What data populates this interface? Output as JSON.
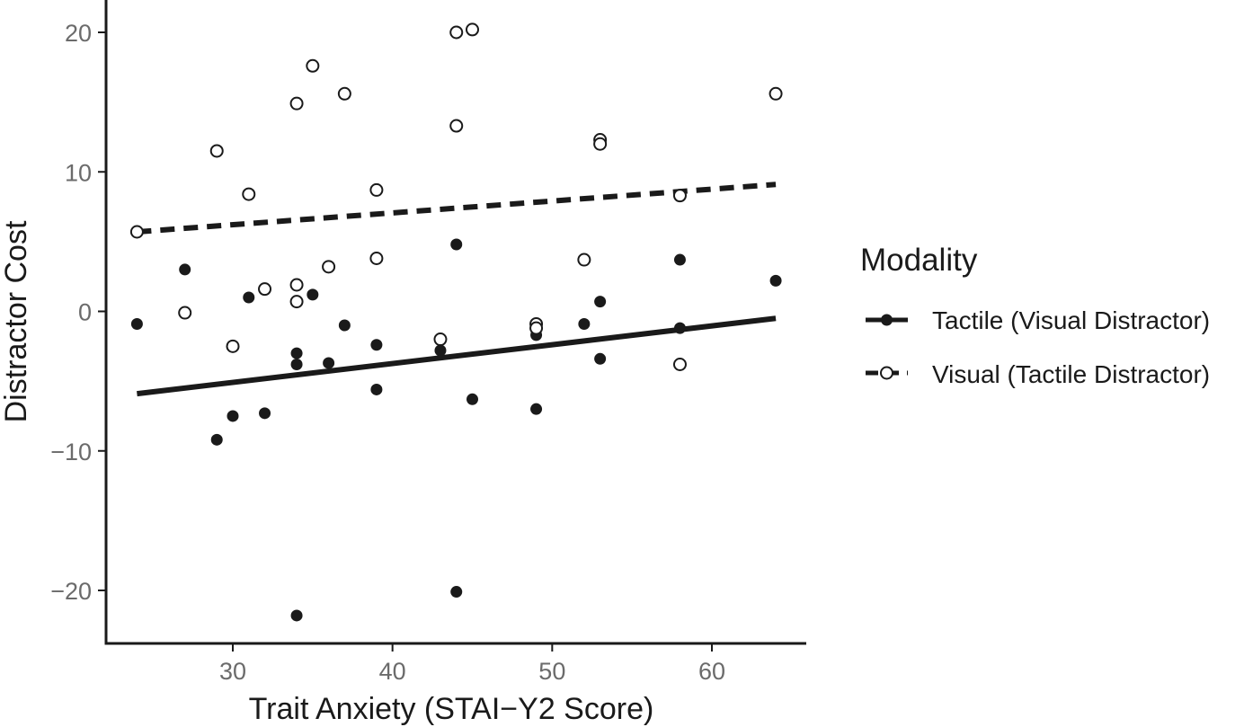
{
  "chart_data": {
    "type": "scatter",
    "xlabel": "Trait Anxiety (STAI−Y2 Score)",
    "ylabel": "Distractor Cost",
    "xlim": [
      22.5,
      66
    ],
    "ylim": [
      -23.5,
      22.3
    ],
    "x_ticks": [
      30,
      40,
      50,
      60
    ],
    "x_tick_labels": [
      "30",
      "40",
      "50",
      "60"
    ],
    "y_ticks": [
      20,
      10,
      0,
      -10,
      -20
    ],
    "y_tick_labels": [
      "20",
      "10",
      "0",
      "−10",
      "−20"
    ],
    "grid": false,
    "legend": {
      "title": "Modality",
      "placement": "right"
    },
    "series": [
      {
        "name": "Tactile (Visual Distractor)",
        "marker": "filled-circle",
        "line_style": "solid",
        "color": "#1a1a1a",
        "fit_line": {
          "x": [
            24,
            64
          ],
          "y": [
            -5.9,
            -0.5
          ]
        },
        "points": [
          {
            "x": 24,
            "y": -0.9
          },
          {
            "x": 27,
            "y": 3.0
          },
          {
            "x": 29,
            "y": -9.2
          },
          {
            "x": 30,
            "y": -7.5
          },
          {
            "x": 31,
            "y": 1.0
          },
          {
            "x": 32,
            "y": -7.3
          },
          {
            "x": 34,
            "y": -3.0
          },
          {
            "x": 34,
            "y": -3.8
          },
          {
            "x": 34,
            "y": -21.8
          },
          {
            "x": 35,
            "y": 1.2
          },
          {
            "x": 36,
            "y": -3.7
          },
          {
            "x": 37,
            "y": -1.0
          },
          {
            "x": 39,
            "y": -2.4
          },
          {
            "x": 39,
            "y": -5.6
          },
          {
            "x": 43,
            "y": -2.8
          },
          {
            "x": 44,
            "y": 4.8
          },
          {
            "x": 44,
            "y": -20.1
          },
          {
            "x": 45,
            "y": -6.3
          },
          {
            "x": 49,
            "y": -1.7
          },
          {
            "x": 49,
            "y": -7.0
          },
          {
            "x": 52,
            "y": -0.9
          },
          {
            "x": 53,
            "y": 0.7
          },
          {
            "x": 53,
            "y": -3.4
          },
          {
            "x": 58,
            "y": 3.7
          },
          {
            "x": 58,
            "y": -1.2
          },
          {
            "x": 64,
            "y": 2.2
          }
        ]
      },
      {
        "name": "Visual (Tactile Distractor)",
        "marker": "open-circle",
        "line_style": "dashed",
        "color": "#1a1a1a",
        "fit_line": {
          "x": [
            24,
            64
          ],
          "y": [
            5.7,
            9.1
          ]
        },
        "points": [
          {
            "x": 24,
            "y": 5.7
          },
          {
            "x": 27,
            "y": -0.1
          },
          {
            "x": 29,
            "y": 11.5
          },
          {
            "x": 30,
            "y": -2.5
          },
          {
            "x": 31,
            "y": 8.4
          },
          {
            "x": 32,
            "y": 1.6
          },
          {
            "x": 34,
            "y": 14.9
          },
          {
            "x": 34,
            "y": 1.9
          },
          {
            "x": 34,
            "y": 0.7
          },
          {
            "x": 35,
            "y": 17.6
          },
          {
            "x": 36,
            "y": 3.2
          },
          {
            "x": 37,
            "y": 15.6
          },
          {
            "x": 39,
            "y": 8.7
          },
          {
            "x": 39,
            "y": 3.8
          },
          {
            "x": 43,
            "y": -2.0
          },
          {
            "x": 44,
            "y": 20.0
          },
          {
            "x": 44,
            "y": 13.3
          },
          {
            "x": 45,
            "y": 20.2
          },
          {
            "x": 49,
            "y": -0.9
          },
          {
            "x": 49,
            "y": -1.2
          },
          {
            "x": 52,
            "y": 3.7
          },
          {
            "x": 53,
            "y": 12.3
          },
          {
            "x": 53,
            "y": 12.0
          },
          {
            "x": 58,
            "y": 8.3
          },
          {
            "x": 58,
            "y": -3.8
          },
          {
            "x": 64,
            "y": 15.6
          }
        ]
      }
    ]
  }
}
